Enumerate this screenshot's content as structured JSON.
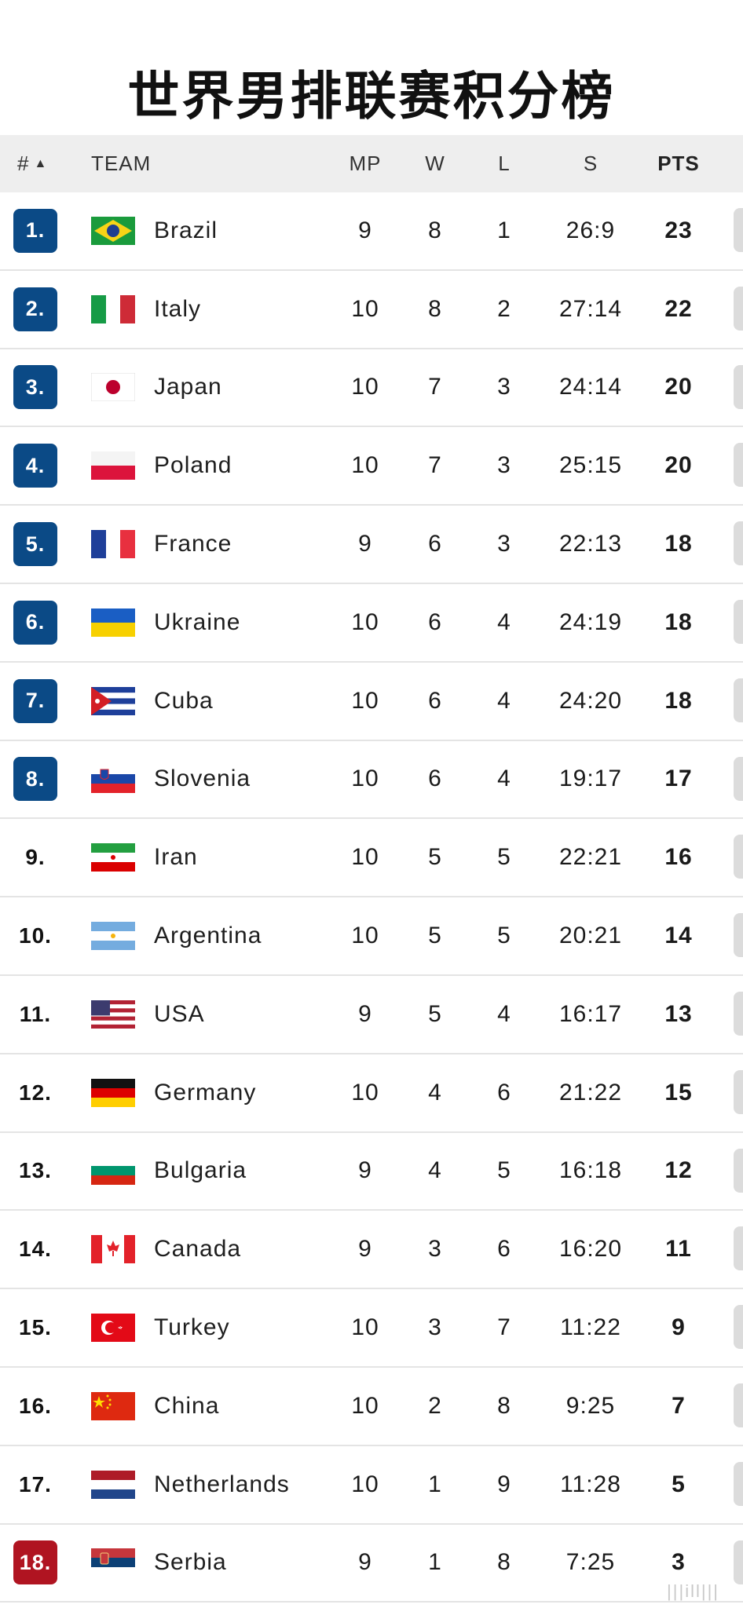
{
  "title": "世界男排联赛积分榜",
  "colors": {
    "badge_top": "#0b4a86",
    "badge_relegation": "#b01421",
    "header_bg": "#eeeeee"
  },
  "header": {
    "rank": "#",
    "team": "TEAM",
    "mp": "MP",
    "w": "W",
    "l": "L",
    "s": "S",
    "pts": "PTS"
  },
  "rows": [
    {
      "rank": "1.",
      "flag": "brazil",
      "team": "Brazil",
      "mp": "9",
      "w": "8",
      "l": "1",
      "s": "26:9",
      "pts": "23",
      "zone": "top"
    },
    {
      "rank": "2.",
      "flag": "italy",
      "team": "Italy",
      "mp": "10",
      "w": "8",
      "l": "2",
      "s": "27:14",
      "pts": "22",
      "zone": "top"
    },
    {
      "rank": "3.",
      "flag": "japan",
      "team": "Japan",
      "mp": "10",
      "w": "7",
      "l": "3",
      "s": "24:14",
      "pts": "20",
      "zone": "top"
    },
    {
      "rank": "4.",
      "flag": "poland",
      "team": "Poland",
      "mp": "10",
      "w": "7",
      "l": "3",
      "s": "25:15",
      "pts": "20",
      "zone": "top"
    },
    {
      "rank": "5.",
      "flag": "france",
      "team": "France",
      "mp": "9",
      "w": "6",
      "l": "3",
      "s": "22:13",
      "pts": "18",
      "zone": "top"
    },
    {
      "rank": "6.",
      "flag": "ukraine",
      "team": "Ukraine",
      "mp": "10",
      "w": "6",
      "l": "4",
      "s": "24:19",
      "pts": "18",
      "zone": "top"
    },
    {
      "rank": "7.",
      "flag": "cuba",
      "team": "Cuba",
      "mp": "10",
      "w": "6",
      "l": "4",
      "s": "24:20",
      "pts": "18",
      "zone": "top"
    },
    {
      "rank": "8.",
      "flag": "slovenia",
      "team": "Slovenia",
      "mp": "10",
      "w": "6",
      "l": "4",
      "s": "19:17",
      "pts": "17",
      "zone": "top"
    },
    {
      "rank": "9.",
      "flag": "iran",
      "team": "Iran",
      "mp": "10",
      "w": "5",
      "l": "5",
      "s": "22:21",
      "pts": "16",
      "zone": "none"
    },
    {
      "rank": "10.",
      "flag": "argentina",
      "team": "Argentina",
      "mp": "10",
      "w": "5",
      "l": "5",
      "s": "20:21",
      "pts": "14",
      "zone": "none"
    },
    {
      "rank": "11.",
      "flag": "usa",
      "team": "USA",
      "mp": "9",
      "w": "5",
      "l": "4",
      "s": "16:17",
      "pts": "13",
      "zone": "none"
    },
    {
      "rank": "12.",
      "flag": "germany",
      "team": "Germany",
      "mp": "10",
      "w": "4",
      "l": "6",
      "s": "21:22",
      "pts": "15",
      "zone": "none"
    },
    {
      "rank": "13.",
      "flag": "bulgaria",
      "team": "Bulgaria",
      "mp": "9",
      "w": "4",
      "l": "5",
      "s": "16:18",
      "pts": "12",
      "zone": "none"
    },
    {
      "rank": "14.",
      "flag": "canada",
      "team": "Canada",
      "mp": "9",
      "w": "3",
      "l": "6",
      "s": "16:20",
      "pts": "11",
      "zone": "none"
    },
    {
      "rank": "15.",
      "flag": "turkey",
      "team": "Turkey",
      "mp": "10",
      "w": "3",
      "l": "7",
      "s": "11:22",
      "pts": "9",
      "zone": "none"
    },
    {
      "rank": "16.",
      "flag": "china",
      "team": "China",
      "mp": "10",
      "w": "2",
      "l": "8",
      "s": "9:25",
      "pts": "7",
      "zone": "none"
    },
    {
      "rank": "17.",
      "flag": "netherlands",
      "team": "Netherlands",
      "mp": "10",
      "w": "1",
      "l": "9",
      "s": "11:28",
      "pts": "5",
      "zone": "none"
    },
    {
      "rank": "18.",
      "flag": "serbia",
      "team": "Serbia",
      "mp": "9",
      "w": "1",
      "l": "8",
      "s": "7:25",
      "pts": "3",
      "zone": "relegation"
    }
  ]
}
